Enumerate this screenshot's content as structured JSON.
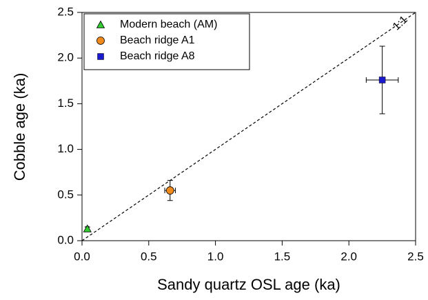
{
  "chart_data": {
    "type": "scatter",
    "xlabel": "Sandy quartz OSL age (ka)",
    "ylabel": "Cobble age (ka)",
    "xlim": [
      0,
      2.5
    ],
    "ylim": [
      0,
      2.5
    ],
    "xticks": [
      {
        "value": 0,
        "label": "0.0"
      },
      {
        "value": 0.5,
        "label": "0.5"
      },
      {
        "value": 1,
        "label": "1.0"
      },
      {
        "value": 1.5,
        "label": "1.5"
      },
      {
        "value": 2,
        "label": "2.0"
      },
      {
        "value": 2.5,
        "label": "2.5"
      }
    ],
    "yticks": [
      {
        "value": 0,
        "label": "0.0"
      },
      {
        "value": 0.5,
        "label": "0.5"
      },
      {
        "value": 1,
        "label": "1.0"
      },
      {
        "value": 1.5,
        "label": "1.5"
      },
      {
        "value": 2,
        "label": "2.0"
      },
      {
        "value": 2.5,
        "label": "2.5"
      }
    ],
    "reference_line": {
      "label": "1:1",
      "x": [
        0,
        2.5
      ],
      "y": [
        0,
        2.5
      ]
    },
    "legend": "upper left",
    "series": [
      {
        "name": "Modern beach (AM)",
        "color": "#33cc33",
        "marker": "triangle",
        "x": [
          0.04
        ],
        "values": [
          0.13
        ],
        "xerr": [
          0.01
        ],
        "yerr": [
          0.02
        ]
      },
      {
        "name": "Beach ridge A1",
        "color": "#f08a1c",
        "marker": "circle",
        "x": [
          0.66
        ],
        "values": [
          0.55
        ],
        "xerr": [
          0.04
        ],
        "yerr": [
          0.11
        ]
      },
      {
        "name": "Beach ridge A8",
        "color": "#1a1acc",
        "marker": "square",
        "x": [
          2.25
        ],
        "values": [
          1.76
        ],
        "xerr": [
          0.12
        ],
        "yerr": [
          0.37
        ]
      }
    ]
  }
}
